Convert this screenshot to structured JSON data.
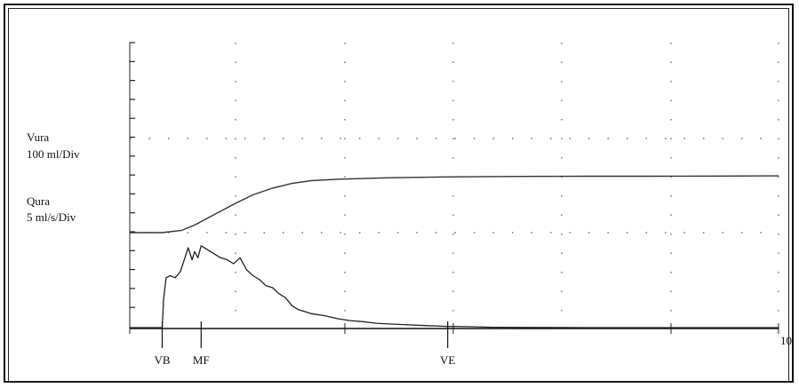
{
  "labels": {
    "volume_name": "Vura",
    "volume_scale": "100 ml/Div",
    "flow_name": "Qura",
    "flow_scale": "5 ml/s/Div"
  },
  "chart_data": {
    "type": "line",
    "title": "",
    "xlabel": "",
    "ylabel": "",
    "grid": "dotted",
    "legend": "none",
    "x_range": [
      0,
      10
    ],
    "x_axis_end_label": "10",
    "markers": [
      {
        "label": "VB",
        "x": 0.5
      },
      {
        "label": "MF",
        "x": 1.1
      },
      {
        "label": "VE",
        "x": 4.9
      }
    ],
    "series": [
      {
        "name": "Vura",
        "color": "#333333",
        "x": [
          0,
          0.5,
          0.8,
          1.0,
          1.3,
          1.6,
          1.9,
          2.2,
          2.5,
          2.8,
          3.2,
          3.6,
          4.0,
          5.0,
          6.0,
          7.0,
          8.0,
          9.0,
          10.0
        ],
        "values": [
          0,
          0,
          0.12,
          0.4,
          0.95,
          1.5,
          2.0,
          2.35,
          2.6,
          2.75,
          2.82,
          2.86,
          2.9,
          2.95,
          2.97,
          2.98,
          2.98,
          2.99,
          3.0
        ]
      },
      {
        "name": "Qura",
        "color": "#222222",
        "x": [
          0,
          0.5,
          0.52,
          0.56,
          0.62,
          0.7,
          0.78,
          0.85,
          0.9,
          0.96,
          1.0,
          1.05,
          1.1,
          1.2,
          1.3,
          1.4,
          1.5,
          1.6,
          1.7,
          1.8,
          1.9,
          2.0,
          2.1,
          2.2,
          2.3,
          2.4,
          2.5,
          2.6,
          2.8,
          3.0,
          3.2,
          3.4,
          3.6,
          3.8,
          4.0,
          4.3,
          4.6,
          4.9,
          5.2,
          5.6,
          6.0,
          7.0,
          8.0,
          9.0,
          10.0
        ],
        "values": [
          0,
          0,
          1.4,
          2.5,
          2.6,
          2.5,
          2.8,
          3.5,
          4.0,
          3.4,
          3.8,
          3.5,
          4.1,
          3.9,
          3.7,
          3.5,
          3.4,
          3.2,
          3.5,
          2.9,
          2.6,
          2.4,
          2.1,
          2.0,
          1.7,
          1.5,
          1.1,
          0.9,
          0.7,
          0.6,
          0.45,
          0.35,
          0.3,
          0.22,
          0.18,
          0.14,
          0.1,
          0.06,
          0.05,
          0.02,
          0.01,
          0,
          0,
          0,
          0
        ]
      }
    ]
  }
}
